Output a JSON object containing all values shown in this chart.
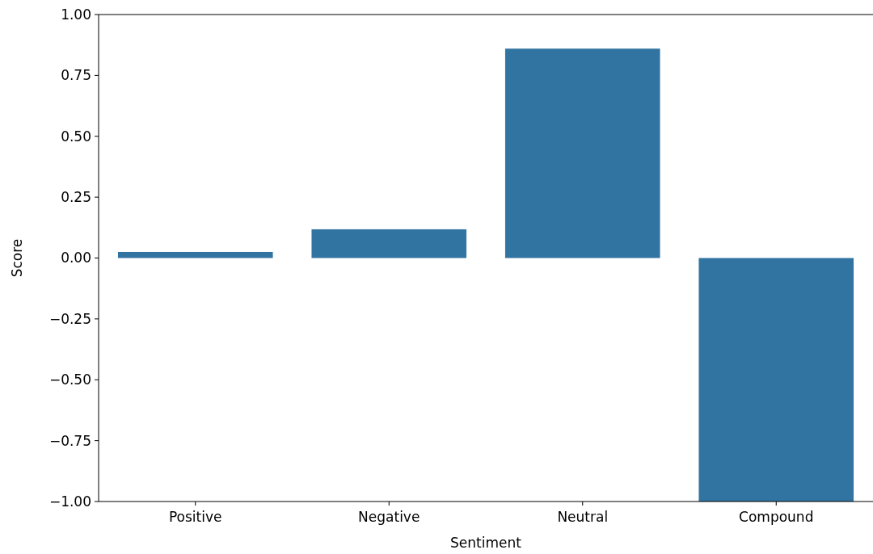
{
  "chart_data": {
    "type": "bar",
    "xlabel": "Sentiment",
    "ylabel": "Score",
    "categories": [
      "Positive",
      "Negative",
      "Neutral",
      "Compound"
    ],
    "values": [
      0.025,
      0.118,
      0.86,
      -1.0
    ],
    "color": "#3274a1",
    "ylim": [
      -1,
      1
    ],
    "yticks": [
      {
        "value": -1,
        "label": "−1.00"
      },
      {
        "value": -0.75,
        "label": "−0.75"
      },
      {
        "value": -0.5,
        "label": "−0.50"
      },
      {
        "value": -0.25,
        "label": "−0.25"
      },
      {
        "value": 0,
        "label": "0.00"
      },
      {
        "value": 0.25,
        "label": "0.25"
      },
      {
        "value": 0.5,
        "label": "0.50"
      },
      {
        "value": 0.75,
        "label": "0.75"
      },
      {
        "value": 1,
        "label": "1.00"
      }
    ]
  }
}
